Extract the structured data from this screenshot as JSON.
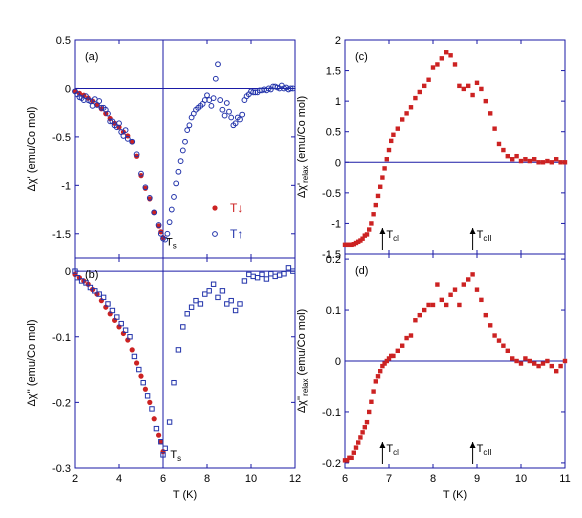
{
  "chart_data": [
    {
      "panel": "(a)",
      "type": "scatter",
      "xlabel": "",
      "ylabel": "Δχ' (emu/Co mol)",
      "xlim": [
        2,
        12
      ],
      "ylim": [
        -1.75,
        0.5
      ],
      "xticks": [
        "2",
        "4",
        "6",
        "8",
        "10",
        "12"
      ],
      "yticks": [
        "0.5",
        "0",
        "-0.5",
        "-1",
        "-1.5"
      ],
      "annotations": [
        {
          "text": "T",
          "sub": "s",
          "x": 6.0,
          "y": -1.62
        }
      ],
      "vline_x": 6.0,
      "hline_y": 0,
      "legend": [
        {
          "label": "T↓",
          "marker": "filled-circle",
          "color": "#cc2222"
        },
        {
          "label": "T↑",
          "marker": "open-circle",
          "color": "#2233aa"
        }
      ],
      "series": [
        {
          "name": "T↓",
          "marker": "filled-circle",
          "color": "#cc2222",
          "x": [
            2.0,
            2.2,
            2.4,
            2.6,
            2.8,
            3.0,
            3.2,
            3.4,
            3.6,
            3.8,
            4.0,
            4.2,
            4.4,
            4.6,
            4.8,
            5.0,
            5.2,
            5.4,
            5.6,
            5.8,
            5.9,
            6.0
          ],
          "y": [
            -0.03,
            -0.05,
            -0.07,
            -0.1,
            -0.13,
            -0.17,
            -0.21,
            -0.26,
            -0.31,
            -0.36,
            -0.4,
            -0.45,
            -0.49,
            -0.55,
            -0.7,
            -0.9,
            -1.03,
            -1.14,
            -1.28,
            -1.42,
            -1.48,
            -1.54
          ]
        },
        {
          "name": "T↑",
          "marker": "open-circle",
          "color": "#2233aa",
          "x": [
            2.0,
            2.1,
            2.2,
            2.3,
            2.4,
            2.5,
            2.6,
            2.7,
            2.8,
            2.9,
            3.0,
            3.1,
            3.2,
            3.3,
            3.4,
            3.5,
            3.6,
            3.7,
            3.8,
            3.9,
            4.0,
            4.1,
            4.2,
            4.3,
            4.4,
            4.6,
            4.8,
            5.0,
            5.2,
            5.4,
            5.6,
            5.8,
            5.9,
            6.0,
            6.1,
            6.2,
            6.3,
            6.4,
            6.5,
            6.6,
            6.7,
            6.8,
            6.9,
            7.0,
            7.1,
            7.2,
            7.3,
            7.4,
            7.5,
            7.6,
            7.7,
            7.8,
            7.9,
            8.0,
            8.1,
            8.2,
            8.3,
            8.4,
            8.5,
            8.6,
            8.7,
            8.8,
            8.9,
            9.0,
            9.1,
            9.2,
            9.3,
            9.4,
            9.5,
            9.6,
            9.7,
            9.8,
            9.9,
            10.0,
            10.1,
            10.2,
            10.3,
            10.4,
            10.5,
            10.6,
            10.7,
            10.8,
            10.9,
            11.0,
            11.1,
            11.2,
            11.3,
            11.4,
            11.5,
            11.6,
            11.7,
            11.8,
            11.9
          ],
          "y": [
            -0.03,
            -0.06,
            -0.09,
            -0.1,
            -0.12,
            -0.08,
            -0.12,
            -0.13,
            -0.18,
            -0.11,
            -0.17,
            -0.13,
            -0.2,
            -0.2,
            -0.22,
            -0.26,
            -0.34,
            -0.34,
            -0.38,
            -0.4,
            -0.36,
            -0.45,
            -0.49,
            -0.43,
            -0.52,
            -0.55,
            -0.68,
            -0.88,
            -1.02,
            -1.13,
            -1.28,
            -1.41,
            -1.5,
            -1.55,
            -1.56,
            -1.5,
            -1.38,
            -1.25,
            -1.12,
            -0.98,
            -0.86,
            -0.75,
            -0.64,
            -0.55,
            -0.43,
            -0.38,
            -0.3,
            -0.26,
            -0.22,
            -0.2,
            -0.18,
            -0.16,
            -0.12,
            -0.07,
            -0.12,
            -0.18,
            -0.1,
            0.1,
            0.25,
            -0.12,
            -0.22,
            -0.28,
            -0.15,
            -0.24,
            -0.3,
            -0.38,
            -0.36,
            -0.3,
            -0.32,
            -0.27,
            -0.12,
            -0.08,
            -0.06,
            -0.03,
            -0.04,
            -0.04,
            -0.04,
            -0.02,
            -0.02,
            -0.01,
            -0.02,
            0.0,
            -0.01,
            0.02,
            0.02,
            0.01,
            0.0,
            0.03,
            0.0,
            0.01,
            -0.01,
            0.0,
            0.0
          ]
        }
      ]
    },
    {
      "panel": "(b)",
      "type": "scatter",
      "xlabel": "T (K)",
      "ylabel": "Δχ'' (emu/Co mol)",
      "xlim": [
        2,
        12
      ],
      "ylim": [
        -0.3,
        0.02
      ],
      "xticks": [
        "2",
        "4",
        "6",
        "8",
        "10",
        "12"
      ],
      "yticks": [
        "0",
        "-0.1",
        "-0.2",
        "-0.3"
      ],
      "annotations": [
        {
          "text": "T",
          "sub": "s",
          "x": 6.2,
          "y": -0.285
        }
      ],
      "vline_x": 6.0,
      "hline_y": 0,
      "series": [
        {
          "name": "T↓",
          "marker": "filled-circle",
          "color": "#cc2222",
          "x": [
            2.0,
            2.2,
            2.4,
            2.6,
            2.8,
            3.0,
            3.2,
            3.4,
            3.6,
            3.8,
            4.0,
            4.2,
            4.4,
            4.6,
            4.8,
            5.0,
            5.2,
            5.4,
            5.6,
            5.8,
            5.9,
            6.0
          ],
          "y": [
            -0.005,
            -0.01,
            -0.015,
            -0.02,
            -0.028,
            -0.035,
            -0.045,
            -0.055,
            -0.065,
            -0.075,
            -0.085,
            -0.095,
            -0.105,
            -0.12,
            -0.14,
            -0.16,
            -0.18,
            -0.2,
            -0.225,
            -0.25,
            -0.26,
            -0.275
          ]
        },
        {
          "name": "T↑",
          "marker": "open-square",
          "color": "#2233aa",
          "x": [
            2.0,
            2.1,
            2.3,
            2.5,
            2.7,
            2.9,
            3.1,
            3.3,
            3.5,
            3.7,
            3.9,
            4.1,
            4.3,
            4.5,
            4.7,
            4.9,
            5.1,
            5.3,
            5.5,
            5.7,
            5.9,
            6.0,
            6.1,
            6.3,
            6.5,
            6.7,
            6.9,
            7.1,
            7.3,
            7.5,
            7.7,
            7.9,
            8.1,
            8.3,
            8.5,
            8.7,
            8.9,
            9.1,
            9.3,
            9.5,
            9.7,
            9.9,
            10.1,
            10.3,
            10.5,
            10.7,
            10.9,
            11.1,
            11.3,
            11.5,
            11.7,
            11.9
          ],
          "y": [
            0.0,
            -0.01,
            -0.015,
            -0.018,
            -0.025,
            -0.03,
            -0.035,
            -0.04,
            -0.05,
            -0.06,
            -0.07,
            -0.08,
            -0.09,
            -0.1,
            -0.13,
            -0.15,
            -0.17,
            -0.19,
            -0.21,
            -0.24,
            -0.26,
            -0.28,
            -0.27,
            -0.23,
            -0.17,
            -0.12,
            -0.085,
            -0.065,
            -0.055,
            -0.045,
            -0.05,
            -0.035,
            -0.03,
            -0.02,
            -0.04,
            -0.03,
            -0.05,
            -0.045,
            -0.06,
            -0.05,
            -0.015,
            -0.005,
            -0.008,
            -0.01,
            -0.005,
            -0.012,
            -0.004,
            -0.008,
            -0.006,
            -0.004,
            0.005,
            0.0
          ]
        }
      ]
    },
    {
      "panel": "(c)",
      "type": "scatter",
      "xlabel": "",
      "ylabel": "Δχ'_relax (emu/Co mol)",
      "xlim": [
        6,
        11
      ],
      "ylim": [
        -1.5,
        2.0
      ],
      "xticks": [
        "6",
        "7",
        "8",
        "9",
        "10",
        "11"
      ],
      "yticks": [
        "2",
        "1.5",
        "1",
        "0.5",
        "0",
        "-0.5",
        "-1",
        "-1.5"
      ],
      "hline_y": 0,
      "arrows": [
        {
          "x": 6.85,
          "label": "T",
          "sub": "cl"
        },
        {
          "x": 8.9,
          "label": "T",
          "sub": "cII"
        }
      ],
      "series": [
        {
          "name": "",
          "marker": "filled-square",
          "color": "#cc2222",
          "x": [
            6.0,
            6.05,
            6.1,
            6.15,
            6.2,
            6.25,
            6.3,
            6.35,
            6.4,
            6.45,
            6.5,
            6.55,
            6.6,
            6.65,
            6.7,
            6.75,
            6.8,
            6.85,
            6.9,
            6.95,
            7.0,
            7.05,
            7.1,
            7.2,
            7.3,
            7.4,
            7.5,
            7.6,
            7.7,
            7.8,
            7.9,
            8.0,
            8.1,
            8.2,
            8.3,
            8.4,
            8.5,
            8.6,
            8.7,
            8.8,
            8.9,
            9.0,
            9.1,
            9.2,
            9.3,
            9.4,
            9.5,
            9.6,
            9.7,
            9.8,
            9.9,
            10.0,
            10.1,
            10.2,
            10.3,
            10.4,
            10.5,
            10.6,
            10.7,
            10.8,
            10.9,
            11.0
          ],
          "y": [
            -1.35,
            -1.35,
            -1.35,
            -1.35,
            -1.34,
            -1.32,
            -1.3,
            -1.28,
            -1.25,
            -1.2,
            -1.18,
            -1.1,
            -1.0,
            -0.85,
            -0.7,
            -0.55,
            -0.4,
            -0.25,
            -0.1,
            0.05,
            0.2,
            0.35,
            0.45,
            0.55,
            0.7,
            0.8,
            0.9,
            1.05,
            1.15,
            1.25,
            1.35,
            1.55,
            1.6,
            1.7,
            1.8,
            1.75,
            1.6,
            1.25,
            1.2,
            1.25,
            1.1,
            1.3,
            1.2,
            1.0,
            0.8,
            0.55,
            0.3,
            0.2,
            0.1,
            0.05,
            0.1,
            0.02,
            0.05,
            0.02,
            0.05,
            0.0,
            0.0,
            0.02,
            0.0,
            0.05,
            0.0,
            0.0
          ]
        }
      ]
    },
    {
      "panel": "(d)",
      "type": "scatter",
      "xlabel": "T (K)",
      "ylabel": "Δχ''_relax (emu/Co mol)",
      "xlim": [
        6,
        11
      ],
      "ylim": [
        -0.21,
        0.21
      ],
      "xticks": [
        "6",
        "7",
        "8",
        "9",
        "10",
        "11"
      ],
      "yticks": [
        "0.2",
        "0.1",
        "0",
        "-0.1",
        "-0.2"
      ],
      "hline_y": 0,
      "arrows": [
        {
          "x": 6.85,
          "label": "T",
          "sub": "cl"
        },
        {
          "x": 8.9,
          "label": "T",
          "sub": "cII"
        }
      ],
      "series": [
        {
          "name": "",
          "marker": "filled-square",
          "color": "#cc2222",
          "x": [
            6.0,
            6.05,
            6.1,
            6.15,
            6.2,
            6.25,
            6.3,
            6.35,
            6.4,
            6.45,
            6.5,
            6.55,
            6.6,
            6.65,
            6.7,
            6.75,
            6.8,
            6.85,
            6.9,
            6.95,
            7.0,
            7.05,
            7.1,
            7.2,
            7.3,
            7.4,
            7.5,
            7.6,
            7.7,
            7.8,
            7.9,
            8.0,
            8.1,
            8.2,
            8.3,
            8.4,
            8.5,
            8.6,
            8.7,
            8.8,
            8.9,
            9.0,
            9.1,
            9.2,
            9.3,
            9.4,
            9.5,
            9.6,
            9.7,
            9.8,
            9.9,
            10.0,
            10.1,
            10.2,
            10.3,
            10.4,
            10.5,
            10.6,
            10.7,
            10.8,
            10.9,
            11.0
          ],
          "y": [
            -0.195,
            -0.195,
            -0.19,
            -0.19,
            -0.18,
            -0.17,
            -0.16,
            -0.15,
            -0.14,
            -0.13,
            -0.12,
            -0.1,
            -0.08,
            -0.06,
            -0.04,
            -0.03,
            -0.02,
            -0.01,
            -0.005,
            0.0,
            0.005,
            0.01,
            0.01,
            0.02,
            0.03,
            0.045,
            0.05,
            0.08,
            0.09,
            0.1,
            0.11,
            0.11,
            0.15,
            0.12,
            0.11,
            0.13,
            0.14,
            0.11,
            0.15,
            0.16,
            0.17,
            0.14,
            0.12,
            0.09,
            0.07,
            0.05,
            0.04,
            0.03,
            0.02,
            0.005,
            0.0,
            -0.005,
            0.005,
            0.0,
            -0.005,
            -0.01,
            -0.005,
            0.0,
            -0.01,
            -0.02,
            -0.01,
            0.0
          ]
        }
      ]
    }
  ]
}
